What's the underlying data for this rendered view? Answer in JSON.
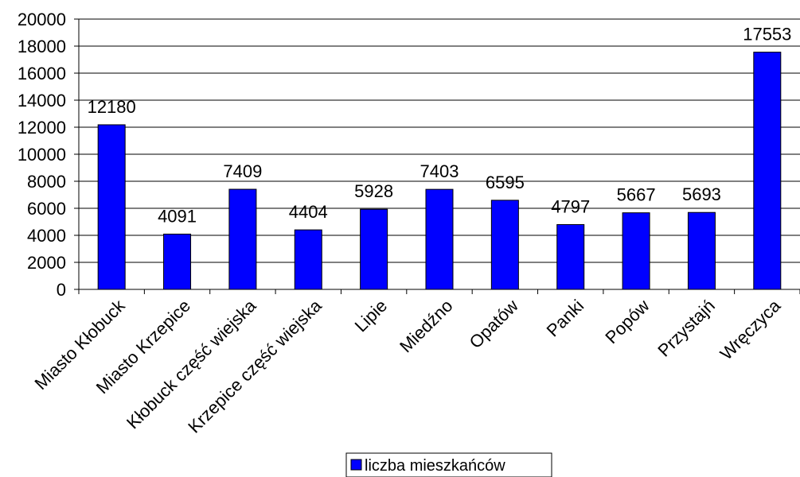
{
  "chart_data": {
    "type": "bar",
    "categories": [
      "Miasto Kłobuck",
      "Miasto Krzepice",
      "Kłobuck część wiejska",
      "Krzepice część wiejska",
      "Lipie",
      "Miedźno",
      "Opatów",
      "Panki",
      "Popów",
      "Przystajń",
      "Wręczyca"
    ],
    "series": [
      {
        "name": "liczba mieszkańców",
        "values": [
          12180,
          4091,
          7409,
          4404,
          5928,
          7403,
          6595,
          4797,
          5667,
          5693,
          17553
        ]
      }
    ],
    "ylim": [
      0,
      20000
    ],
    "yticks": [
      0,
      2000,
      4000,
      6000,
      8000,
      10000,
      12000,
      14000,
      16000,
      18000,
      20000
    ],
    "grid": true,
    "legend_position": "bottom",
    "data_labels": true
  },
  "colors": {
    "bar_fill": "#0000FF",
    "bar_stroke": "#000000",
    "grid": "#000000"
  }
}
